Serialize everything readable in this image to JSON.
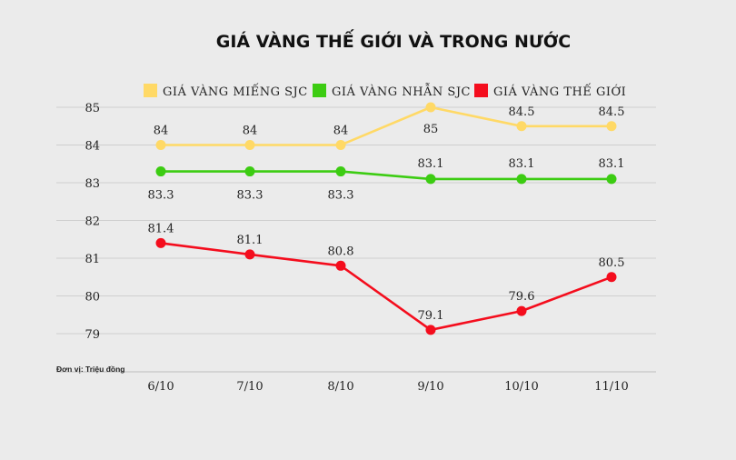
{
  "chart_data": {
    "type": "line",
    "title": "GIÁ VÀNG THẾ GIỚI VÀ TRONG NƯỚC",
    "unit_note": "Đơn vị: Triệu đồng",
    "categories": [
      "6/10",
      "7/10",
      "8/10",
      "9/10",
      "10/10",
      "11/10"
    ],
    "ylim": [
      79,
      85
    ],
    "yticks": [
      79,
      80,
      81,
      82,
      83,
      84,
      85
    ],
    "grid": true,
    "legend_position": "top",
    "series": [
      {
        "name": "GIÁ VÀNG MIẾNG SJC",
        "color": "#ffd966",
        "values": [
          84,
          84,
          84,
          85,
          84.5,
          84.5
        ],
        "label_position": "above"
      },
      {
        "name": "GIÁ VÀNG NHẪN SJC",
        "color": "#3ccc12",
        "values": [
          83.3,
          83.3,
          83.3,
          83.1,
          83.1,
          83.1
        ],
        "label_position": "mixed"
      },
      {
        "name": "GIÁ VÀNG THẾ GIỚI",
        "color": "#f40d1d",
        "values": [
          81.4,
          81.1,
          80.8,
          79.1,
          79.6,
          80.5
        ],
        "label_position": "above"
      }
    ]
  }
}
